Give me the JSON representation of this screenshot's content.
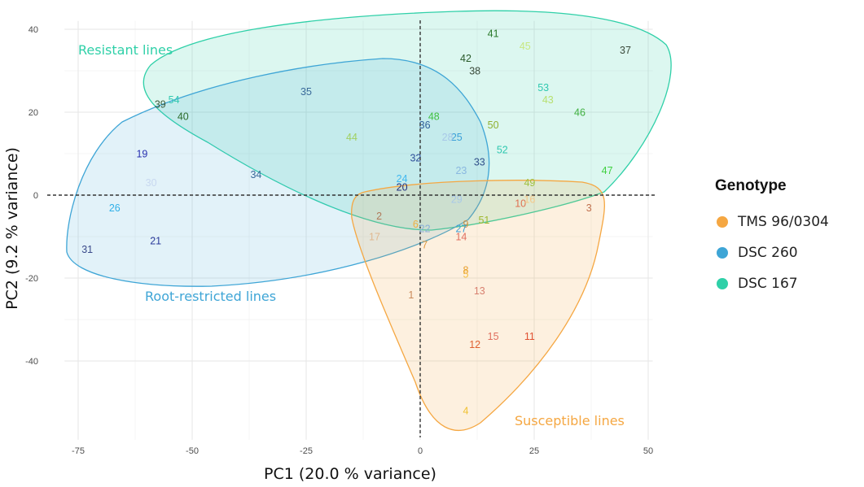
{
  "chart_data": {
    "type": "scatter",
    "title": "",
    "xlabel": "PC1 (20.0 % variance)",
    "ylabel": "PC2 (9.2 % variance)",
    "xlim": [
      -78,
      51
    ],
    "ylim": [
      -59,
      42
    ],
    "xticks": [
      -75,
      -50,
      -25,
      0,
      25,
      50
    ],
    "yticks": [
      -40,
      -20,
      0,
      20,
      40
    ],
    "grid": true,
    "reference_lines": {
      "x": 0,
      "y": 0,
      "style": "dashed"
    },
    "legend": {
      "title": "Genotype",
      "position": "right",
      "entries": [
        {
          "name": "TMS 96/0304",
          "color": "#f5a742"
        },
        {
          "name": "DSC 260",
          "color": "#3ea5d6"
        },
        {
          "name": "DSC 167",
          "color": "#2fd0a8"
        }
      ]
    },
    "groups": [
      {
        "label": "Resistant lines",
        "genotype": "DSC 167",
        "color": "#2fd0a8"
      },
      {
        "label": "Root-restricted lines",
        "genotype": "DSC 260",
        "color": "#3ea5d6"
      },
      {
        "label": "Susceptible lines",
        "genotype": "TMS 96/0304",
        "color": "#f5a742"
      }
    ],
    "points": [
      {
        "id": "1",
        "x": -2,
        "y": -24,
        "color": "#c98a5a"
      },
      {
        "id": "2",
        "x": -9,
        "y": -5,
        "color": "#b07a5a"
      },
      {
        "id": "3",
        "x": 37,
        "y": -3,
        "color": "#c0704d"
      },
      {
        "id": "4",
        "x": 10,
        "y": -52,
        "color": "#f0c030"
      },
      {
        "id": "5",
        "x": 10,
        "y": -19,
        "color": "#f5c040"
      },
      {
        "id": "6",
        "x": -1,
        "y": -7,
        "color": "#f0b040"
      },
      {
        "id": "7",
        "x": 1,
        "y": -12,
        "color": "#e09a40"
      },
      {
        "id": "8",
        "x": 10,
        "y": -18,
        "color": "#e8a030"
      },
      {
        "id": "9",
        "x": 10,
        "y": -7,
        "color": "#d09040"
      },
      {
        "id": "10",
        "x": 22,
        "y": -2,
        "color": "#e07050"
      },
      {
        "id": "11",
        "x": 24,
        "y": -34,
        "color": "#e05030"
      },
      {
        "id": "12",
        "x": 12,
        "y": -36,
        "color": "#e06030"
      },
      {
        "id": "13",
        "x": 13,
        "y": -23,
        "color": "#d88070"
      },
      {
        "id": "14",
        "x": 9,
        "y": -10,
        "color": "#e07060"
      },
      {
        "id": "15",
        "x": 16,
        "y": -34,
        "color": "#e07060"
      },
      {
        "id": "16",
        "x": 24,
        "y": -1,
        "color": "#f5c888"
      },
      {
        "id": "17",
        "x": -10,
        "y": -10,
        "color": "#e0b890"
      },
      {
        "id": "19",
        "x": -61,
        "y": 10,
        "color": "#2830b0"
      },
      {
        "id": "20",
        "x": -4,
        "y": 2,
        "color": "#203080"
      },
      {
        "id": "21",
        "x": -58,
        "y": -11,
        "color": "#2a3a9a"
      },
      {
        "id": "22",
        "x": 1,
        "y": -8,
        "color": "#8ab0d8"
      },
      {
        "id": "23",
        "x": 9,
        "y": 6,
        "color": "#8ab8e0"
      },
      {
        "id": "24",
        "x": -4,
        "y": 4,
        "color": "#40b8f0"
      },
      {
        "id": "25",
        "x": 8,
        "y": 14,
        "color": "#3aa0d8"
      },
      {
        "id": "26",
        "x": -67,
        "y": -3,
        "color": "#30b0e8"
      },
      {
        "id": "27",
        "x": 9,
        "y": -8,
        "color": "#3aa0d8"
      },
      {
        "id": "28",
        "x": 6,
        "y": 14,
        "color": "#a8c8e8"
      },
      {
        "id": "29",
        "x": 8,
        "y": -1,
        "color": "#a8c8e8"
      },
      {
        "id": "30",
        "x": -59,
        "y": 3,
        "color": "#c8d8f0"
      },
      {
        "id": "31",
        "x": -73,
        "y": -13,
        "color": "#3a4a8a"
      },
      {
        "id": "32",
        "x": -1,
        "y": 9,
        "color": "#30509a"
      },
      {
        "id": "33",
        "x": 13,
        "y": 8,
        "color": "#30508a"
      },
      {
        "id": "34",
        "x": -36,
        "y": 5,
        "color": "#3a6a9a"
      },
      {
        "id": "35",
        "x": -25,
        "y": 25,
        "color": "#3a6a9a"
      },
      {
        "id": "36",
        "x": 1,
        "y": 17,
        "color": "#30609a"
      },
      {
        "id": "37",
        "x": 45,
        "y": 35,
        "color": "#3a4a3a"
      },
      {
        "id": "38",
        "x": 12,
        "y": 30,
        "color": "#3a4a3a"
      },
      {
        "id": "39",
        "x": -57,
        "y": 22,
        "color": "#3a5a3a"
      },
      {
        "id": "40",
        "x": -52,
        "y": 19,
        "color": "#2a6a2a"
      },
      {
        "id": "41",
        "x": 16,
        "y": 39,
        "color": "#2a7a2a"
      },
      {
        "id": "42",
        "x": 10,
        "y": 33,
        "color": "#2a5a2a"
      },
      {
        "id": "43",
        "x": 28,
        "y": 23,
        "color": "#b8e070"
      },
      {
        "id": "44",
        "x": -15,
        "y": 14,
        "color": "#a0d060"
      },
      {
        "id": "45",
        "x": 23,
        "y": 36,
        "color": "#c8e880"
      },
      {
        "id": "46",
        "x": 35,
        "y": 20,
        "color": "#40b040"
      },
      {
        "id": "47",
        "x": 41,
        "y": 6,
        "color": "#40d040"
      },
      {
        "id": "48",
        "x": 3,
        "y": 19,
        "color": "#40c040"
      },
      {
        "id": "49",
        "x": 24,
        "y": 3,
        "color": "#a0c040"
      },
      {
        "id": "50",
        "x": 16,
        "y": 17,
        "color": "#90b030"
      },
      {
        "id": "51",
        "x": 14,
        "y": -6,
        "color": "#a0b830"
      },
      {
        "id": "52",
        "x": 18,
        "y": 11,
        "color": "#30c8b0"
      },
      {
        "id": "53",
        "x": 27,
        "y": 26,
        "color": "#30c8b0"
      },
      {
        "id": "54",
        "x": -54,
        "y": 23,
        "color": "#30c8b0"
      }
    ]
  }
}
